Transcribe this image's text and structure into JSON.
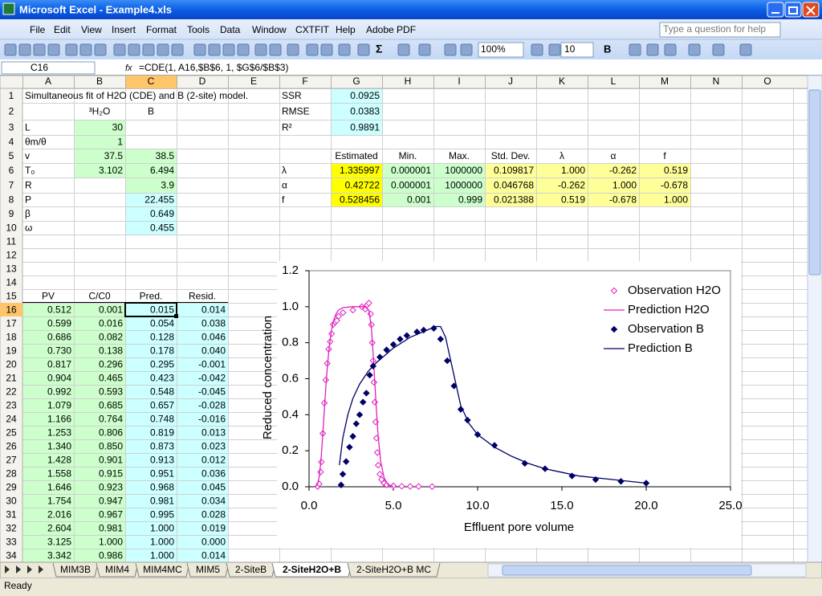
{
  "window": {
    "title": "Microsoft Excel - Example4.xls"
  },
  "menu": [
    "File",
    "Edit",
    "View",
    "Insert",
    "Format",
    "Tools",
    "Data",
    "Window",
    "CXTFIT",
    "Help",
    "Adobe PDF"
  ],
  "help_box": "Type a question for help",
  "toolbar": {
    "sum": "Σ",
    "zoom": "100%",
    "font_size": "10",
    "bold": "B"
  },
  "formula_bar": {
    "cell": "C16",
    "fx": "fx",
    "formula": "=CDE(1, A16,$B$6, 1, $G$6/$B$3)"
  },
  "sheet": {
    "columns": [
      "A",
      "B",
      "C",
      "D",
      "E",
      "F",
      "G",
      "H",
      "I",
      "J",
      "K",
      "L",
      "M",
      "N",
      "O"
    ],
    "rows": [
      {
        "n": 1,
        "cells": {
          "A": "Simultaneous fit of H2O (CDE) and B (2-site) model.",
          "F": "SSR",
          "G": "0.0925"
        }
      },
      {
        "n": 2,
        "cells": {
          "B": "³H₂O",
          "C": "B",
          "F": "RMSE",
          "G": "0.0383"
        }
      },
      {
        "n": 3,
        "cells": {
          "A": "L",
          "B": "30",
          "F": "R²",
          "G": "0.9891"
        }
      },
      {
        "n": 4,
        "cells": {
          "A": "θm/θ",
          "B": "1"
        }
      },
      {
        "n": 5,
        "cells": {
          "A": "v",
          "B": "37.5",
          "C": "38.5",
          "G": "Estimated",
          "H": "Min.",
          "I": "Max.",
          "J": "Std. Dev.",
          "K": "λ",
          "L": "α",
          "M": "f"
        }
      },
      {
        "n": 6,
        "cells": {
          "A": "T₀",
          "B": "3.102",
          "C": "6.494",
          "F": "λ",
          "G": "1.335997",
          "H": "0.000001",
          "I": "1000000",
          "J": "0.109817",
          "K": "1.000",
          "L": "-0.262",
          "M": "0.519"
        }
      },
      {
        "n": 7,
        "cells": {
          "A": "R",
          "C": "3.9",
          "F": "α",
          "G": "0.42722",
          "H": "0.000001",
          "I": "1000000",
          "J": "0.046768",
          "K": "-0.262",
          "L": "1.000",
          "M": "-0.678"
        }
      },
      {
        "n": 8,
        "cells": {
          "A": "P",
          "C": "22.455",
          "F": "f",
          "G": "0.528456",
          "H": "0.001",
          "I": "0.999",
          "J": "0.021388",
          "K": "0.519",
          "L": "-0.678",
          "M": "1.000"
        }
      },
      {
        "n": 9,
        "cells": {
          "A": "β",
          "C": "0.649"
        }
      },
      {
        "n": 10,
        "cells": {
          "A": "ω",
          "C": "0.455"
        }
      },
      {
        "n": 11
      },
      {
        "n": 12
      },
      {
        "n": 13
      },
      {
        "n": 14
      },
      {
        "n": 15,
        "cells": {
          "A": "PV",
          "B": "C/C0",
          "C": "Pred.",
          "D": "Resid."
        }
      },
      {
        "n": 16,
        "cells": {
          "A": "0.512",
          "B": "0.001",
          "C": "0.015",
          "D": "0.014"
        }
      },
      {
        "n": 17,
        "cells": {
          "A": "0.599",
          "B": "0.016",
          "C": "0.054",
          "D": "0.038"
        }
      },
      {
        "n": 18,
        "cells": {
          "A": "0.686",
          "B": "0.082",
          "C": "0.128",
          "D": "0.046"
        }
      },
      {
        "n": 19,
        "cells": {
          "A": "0.730",
          "B": "0.138",
          "C": "0.178",
          "D": "0.040"
        }
      },
      {
        "n": 20,
        "cells": {
          "A": "0.817",
          "B": "0.296",
          "C": "0.295",
          "D": "-0.001"
        }
      },
      {
        "n": 21,
        "cells": {
          "A": "0.904",
          "B": "0.465",
          "C": "0.423",
          "D": "-0.042"
        }
      },
      {
        "n": 22,
        "cells": {
          "A": "0.992",
          "B": "0.593",
          "C": "0.548",
          "D": "-0.045"
        }
      },
      {
        "n": 23,
        "cells": {
          "A": "1.079",
          "B": "0.685",
          "C": "0.657",
          "D": "-0.028"
        }
      },
      {
        "n": 24,
        "cells": {
          "A": "1.166",
          "B": "0.764",
          "C": "0.748",
          "D": "-0.016"
        }
      },
      {
        "n": 25,
        "cells": {
          "A": "1.253",
          "B": "0.806",
          "C": "0.819",
          "D": "0.013"
        }
      },
      {
        "n": 26,
        "cells": {
          "A": "1.340",
          "B": "0.850",
          "C": "0.873",
          "D": "0.023"
        }
      },
      {
        "n": 27,
        "cells": {
          "A": "1.428",
          "B": "0.901",
          "C": "0.913",
          "D": "0.012"
        }
      },
      {
        "n": 28,
        "cells": {
          "A": "1.558",
          "B": "0.915",
          "C": "0.951",
          "D": "0.036"
        }
      },
      {
        "n": 29,
        "cells": {
          "A": "1.646",
          "B": "0.923",
          "C": "0.968",
          "D": "0.045"
        }
      },
      {
        "n": 30,
        "cells": {
          "A": "1.754",
          "B": "0.947",
          "C": "0.981",
          "D": "0.034"
        }
      },
      {
        "n": 31,
        "cells": {
          "A": "2.016",
          "B": "0.967",
          "C": "0.995",
          "D": "0.028"
        }
      },
      {
        "n": 32,
        "cells": {
          "A": "2.604",
          "B": "0.981",
          "C": "1.000",
          "D": "0.019"
        }
      },
      {
        "n": 33,
        "cells": {
          "A": "3.125",
          "B": "1.000",
          "C": "1.000",
          "D": "0.000"
        }
      },
      {
        "n": 34,
        "cells": {
          "A": "3.342",
          "B": "0.986",
          "C": "1.000",
          "D": "0.014"
        }
      }
    ]
  },
  "tabs": [
    "MIM3B",
    "MIM4",
    "MIM4MC",
    "MIM5",
    "2-SiteB",
    "2-SiteH2O+B",
    "2-SiteH2O+B MC"
  ],
  "status": "Ready",
  "chart_data": {
    "type": "scatter",
    "xlabel": "Effluent pore volume",
    "ylabel": "Reduced concentration",
    "xlim": [
      0,
      25
    ],
    "xticks": [
      {
        "value": 0,
        "label": "0.0"
      },
      {
        "value": 5,
        "label": "5.0"
      },
      {
        "value": 10,
        "label": "10.0"
      },
      {
        "value": 15,
        "label": "15.0"
      },
      {
        "value": 20,
        "label": "20.0"
      },
      {
        "value": 25,
        "label": "25.0"
      }
    ],
    "ylim": [
      0,
      1.2
    ],
    "yticks": [
      {
        "value": 0,
        "label": "0.0"
      },
      {
        "value": 0.2,
        "label": "0.2"
      },
      {
        "value": 0.4,
        "label": "0.4"
      },
      {
        "value": 0.6,
        "label": "0.6"
      },
      {
        "value": 0.8,
        "label": "0.8"
      },
      {
        "value": 1,
        "label": "1.0"
      },
      {
        "value": 1.2,
        "label": "1.2"
      }
    ],
    "legend": "upper right",
    "series": [
      {
        "name": "Observation H2O",
        "color": "#e020c0",
        "mode": "markers",
        "marker": "open-diamond",
        "x": [
          0.512,
          0.599,
          0.686,
          0.73,
          0.817,
          0.904,
          0.992,
          1.079,
          1.166,
          1.253,
          1.34,
          1.428,
          1.558,
          1.646,
          1.754,
          2.016,
          2.604,
          3.125,
          3.342,
          3.45,
          3.55,
          3.65,
          3.7,
          3.75,
          3.8,
          3.85,
          3.9,
          3.95,
          4.0,
          4.05,
          4.1,
          4.2,
          4.3,
          4.45,
          4.6,
          5.0,
          5.5,
          6.0,
          6.5,
          7.3
        ],
        "values": [
          0.001,
          0.016,
          0.082,
          0.138,
          0.296,
          0.465,
          0.593,
          0.685,
          0.764,
          0.806,
          0.85,
          0.901,
          0.915,
          0.923,
          0.947,
          0.967,
          0.981,
          1.0,
          0.986,
          1.01,
          1.02,
          0.96,
          0.9,
          0.8,
          0.7,
          0.58,
          0.47,
          0.36,
          0.27,
          0.19,
          0.12,
          0.07,
          0.04,
          0.02,
          0.01,
          0.005,
          0.003,
          0.002,
          0.002,
          0.001
        ]
      },
      {
        "name": "Prediction H2O",
        "color": "#e020c0",
        "mode": "line",
        "x": [
          0.3,
          0.4,
          0.512,
          0.599,
          0.686,
          0.73,
          0.817,
          0.904,
          0.992,
          1.079,
          1.166,
          1.253,
          1.34,
          1.428,
          1.558,
          1.646,
          1.754,
          2.016,
          2.604,
          3.125,
          3.342,
          3.55,
          3.7,
          3.8,
          3.9,
          4.0,
          4.1,
          4.25,
          4.45,
          4.7,
          5.0
        ],
        "values": [
          0,
          0.003,
          0.015,
          0.054,
          0.128,
          0.178,
          0.295,
          0.423,
          0.548,
          0.657,
          0.748,
          0.819,
          0.873,
          0.913,
          0.951,
          0.968,
          0.981,
          0.995,
          1.0,
          1.0,
          1.0,
          0.98,
          0.88,
          0.74,
          0.58,
          0.42,
          0.28,
          0.14,
          0.05,
          0.01,
          0.002
        ]
      },
      {
        "name": "Observation B",
        "color": "#000066",
        "mode": "markers",
        "marker": "filled-diamond",
        "x": [
          1.9,
          2.0,
          2.2,
          2.4,
          2.6,
          2.8,
          3.0,
          3.2,
          3.4,
          3.6,
          3.8,
          4.2,
          4.6,
          5.0,
          5.4,
          5.8,
          6.4,
          6.8,
          7.4,
          7.8,
          8.2,
          8.6,
          9.0,
          9.4,
          10.0,
          11.0,
          12.8,
          14.0,
          15.6,
          17.0,
          18.5,
          20.0
        ],
        "values": [
          0.01,
          0.07,
          0.14,
          0.22,
          0.28,
          0.35,
          0.4,
          0.47,
          0.52,
          0.62,
          0.67,
          0.72,
          0.76,
          0.79,
          0.82,
          0.84,
          0.86,
          0.87,
          0.88,
          0.82,
          0.7,
          0.56,
          0.43,
          0.37,
          0.29,
          0.23,
          0.13,
          0.1,
          0.06,
          0.04,
          0.03,
          0.02
        ]
      },
      {
        "name": "Prediction B",
        "color": "#000066",
        "mode": "line",
        "x": [
          1.8,
          2.0,
          2.3,
          2.6,
          3.0,
          3.5,
          4.0,
          5.0,
          6.0,
          7.0,
          7.5,
          7.8,
          8.1,
          8.5,
          9.0,
          9.5,
          10.0,
          11.0,
          12.0,
          13.0,
          14.0,
          15.0,
          16.0,
          18.0,
          20.0
        ],
        "values": [
          0.12,
          0.27,
          0.4,
          0.49,
          0.57,
          0.64,
          0.69,
          0.77,
          0.83,
          0.87,
          0.89,
          0.89,
          0.83,
          0.66,
          0.45,
          0.35,
          0.29,
          0.22,
          0.17,
          0.13,
          0.1,
          0.08,
          0.06,
          0.04,
          0.02
        ]
      }
    ]
  }
}
